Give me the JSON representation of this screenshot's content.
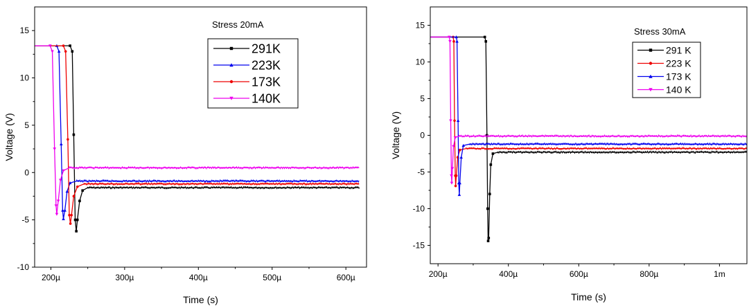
{
  "chart_data": [
    {
      "type": "line",
      "annotation": "Stress 20mA",
      "xlabel": "Time (s)",
      "ylabel": "Voltage (V)",
      "xlim": [
        0.000178,
        0.000628
      ],
      "ylim": [
        -10,
        17.5
      ],
      "xticks": [
        {
          "v": 0.0002,
          "label": "200µ"
        },
        {
          "v": 0.0003,
          "label": "300µ"
        },
        {
          "v": 0.0004,
          "label": "400µ"
        },
        {
          "v": 0.0005,
          "label": "500µ"
        },
        {
          "v": 0.0006,
          "label": "600µ"
        }
      ],
      "yticks": [
        {
          "v": -10,
          "label": "-10"
        },
        {
          "v": -5,
          "label": "-5"
        },
        {
          "v": 0,
          "label": "0"
        },
        {
          "v": 5,
          "label": "5"
        },
        {
          "v": 10,
          "label": "10"
        },
        {
          "v": 15,
          "label": "15"
        }
      ],
      "legend_font": 18,
      "series": [
        {
          "name": "291K",
          "color": "#000000",
          "marker": "square",
          "points": [
            [
              0.000178,
              13.4
            ],
            [
              0.000226,
              13.4
            ],
            [
              0.000229,
              12.8
            ],
            [
              0.000231,
              4.0
            ],
            [
              0.000233,
              -5.0
            ],
            [
              0.0002345,
              -6.2
            ],
            [
              0.000236,
              -5.0
            ],
            [
              0.000239,
              -3.0
            ],
            [
              0.000243,
              -1.9
            ],
            [
              0.00025,
              -1.6
            ],
            [
              0.000618,
              -1.6
            ]
          ]
        },
        {
          "name": "223K",
          "color": "#0000ee",
          "marker": "triangle",
          "points": [
            [
              0.000178,
              13.4
            ],
            [
              0.000208,
              13.4
            ],
            [
              0.000211,
              12.8
            ],
            [
              0.000214,
              3.0
            ],
            [
              0.000216,
              -4.0
            ],
            [
              0.000217,
              -4.9
            ],
            [
              0.000219,
              -4.0
            ],
            [
              0.000222,
              -2.0
            ],
            [
              0.000226,
              -1.1
            ],
            [
              0.000235,
              -0.9
            ],
            [
              0.000618,
              -0.9
            ]
          ]
        },
        {
          "name": "173K",
          "color": "#ee0000",
          "marker": "circle",
          "points": [
            [
              0.000178,
              13.4
            ],
            [
              0.000217,
              13.4
            ],
            [
              0.00022,
              12.8
            ],
            [
              0.000223,
              3.5
            ],
            [
              0.000225,
              -4.5
            ],
            [
              0.0002265,
              -5.4
            ],
            [
              0.000228,
              -4.5
            ],
            [
              0.000231,
              -2.5
            ],
            [
              0.000236,
              -1.5
            ],
            [
              0.000245,
              -1.2
            ],
            [
              0.000618,
              -1.2
            ]
          ]
        },
        {
          "name": "140K",
          "color": "#ee00ee",
          "marker": "triangle-down",
          "points": [
            [
              0.000178,
              13.4
            ],
            [
              0.000199,
              13.4
            ],
            [
              0.000202,
              12.8
            ],
            [
              0.000205,
              2.5
            ],
            [
              0.000207,
              -3.5
            ],
            [
              0.000208,
              -4.4
            ],
            [
              0.00021,
              -3.0
            ],
            [
              0.000213,
              -0.8
            ],
            [
              0.000217,
              0.2
            ],
            [
              0.000225,
              0.5
            ],
            [
              0.000618,
              0.5
            ]
          ]
        }
      ]
    },
    {
      "type": "line",
      "annotation": "Stress 30mA",
      "xlabel": "Time (s)",
      "ylabel": "Voltage (V)",
      "xlim": [
        0.000178,
        0.001078
      ],
      "ylim": [
        -17.5,
        17.5
      ],
      "xticks": [
        {
          "v": 0.0002,
          "label": "200µ"
        },
        {
          "v": 0.0004,
          "label": "400µ"
        },
        {
          "v": 0.0006,
          "label": "600µ"
        },
        {
          "v": 0.0008,
          "label": "800µ"
        },
        {
          "v": 0.001,
          "label": "1m"
        }
      ],
      "yticks": [
        {
          "v": -15,
          "label": "-15"
        },
        {
          "v": -10,
          "label": "-10"
        },
        {
          "v": -5,
          "label": "-5"
        },
        {
          "v": 0,
          "label": "0"
        },
        {
          "v": 5,
          "label": "5"
        },
        {
          "v": 10,
          "label": "10"
        },
        {
          "v": 15,
          "label": "15"
        }
      ],
      "legend_font": 14,
      "series": [
        {
          "name": "291 K",
          "color": "#000000",
          "marker": "square",
          "points": [
            [
              0.000178,
              13.4
            ],
            [
              0.000333,
              13.4
            ],
            [
              0.000336,
              12.8
            ],
            [
              0.000339,
              0.0
            ],
            [
              0.000341,
              -10.0
            ],
            [
              0.0003425,
              -14.4
            ],
            [
              0.000344,
              -14.0
            ],
            [
              0.000347,
              -8.0
            ],
            [
              0.00035,
              -4.0
            ],
            [
              0.000356,
              -2.5
            ],
            [
              0.00037,
              -2.3
            ],
            [
              0.001078,
              -2.3
            ]
          ]
        },
        {
          "name": "223 K",
          "color": "#ee0000",
          "marker": "circle",
          "points": [
            [
              0.000178,
              13.4
            ],
            [
              0.000243,
              13.4
            ],
            [
              0.000245,
              12.8
            ],
            [
              0.000247,
              2.0
            ],
            [
              0.000249,
              -5.5
            ],
            [
              0.00025,
              -6.9
            ],
            [
              0.000252,
              -5.5
            ],
            [
              0.000256,
              -3.0
            ],
            [
              0.000262,
              -2.0
            ],
            [
              0.00028,
              -1.8
            ],
            [
              0.001078,
              -1.8
            ]
          ]
        },
        {
          "name": "173 K",
          "color": "#0000ee",
          "marker": "triangle",
          "points": [
            [
              0.000178,
              13.4
            ],
            [
              0.000252,
              13.4
            ],
            [
              0.000254,
              12.8
            ],
            [
              0.000257,
              2.0
            ],
            [
              0.000259,
              -6.5
            ],
            [
              0.0002605,
              -8.1
            ],
            [
              0.000262,
              -6.5
            ],
            [
              0.000266,
              -3.0
            ],
            [
              0.000272,
              -1.4
            ],
            [
              0.00029,
              -1.2
            ],
            [
              0.001078,
              -1.2
            ]
          ]
        },
        {
          "name": "140 K",
          "color": "#ee00ee",
          "marker": "triangle-down",
          "points": [
            [
              0.000178,
              13.4
            ],
            [
              0.000232,
              13.4
            ],
            [
              0.000234,
              12.8
            ],
            [
              0.000236,
              2.0
            ],
            [
              0.000238,
              -5.5
            ],
            [
              0.000239,
              -6.5
            ],
            [
              0.000241,
              -4.5
            ],
            [
              0.000244,
              -1.5
            ],
            [
              0.000249,
              -0.3
            ],
            [
              0.00026,
              -0.1
            ],
            [
              0.001078,
              -0.1
            ]
          ]
        }
      ]
    }
  ]
}
